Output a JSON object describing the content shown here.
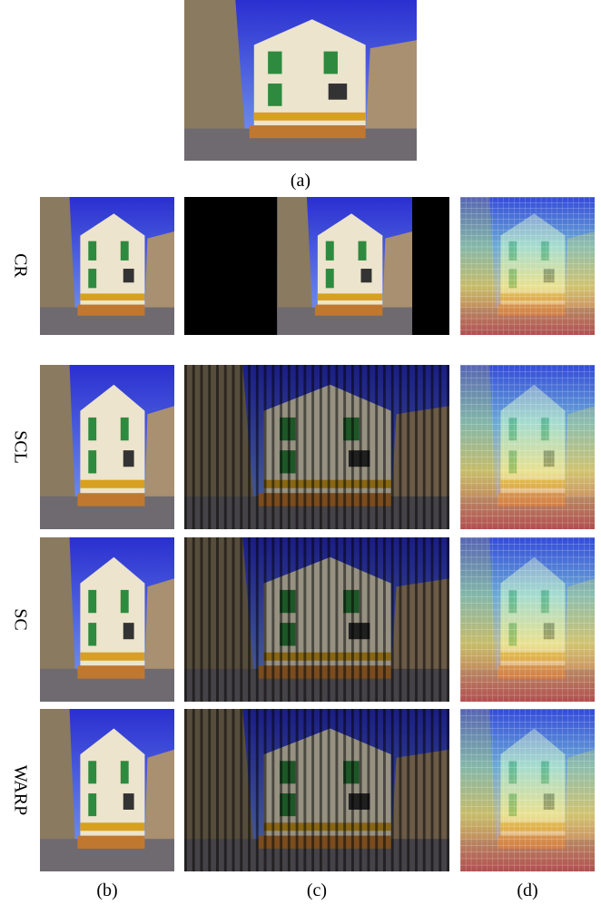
{
  "figure": {
    "top_caption": "(a)",
    "rows": [
      {
        "label": "CR"
      },
      {
        "label": "SCL"
      },
      {
        "label": "SC"
      },
      {
        "label": "WARP"
      }
    ],
    "column_captions": [
      "(b)",
      "(c)",
      "(d)"
    ]
  }
}
